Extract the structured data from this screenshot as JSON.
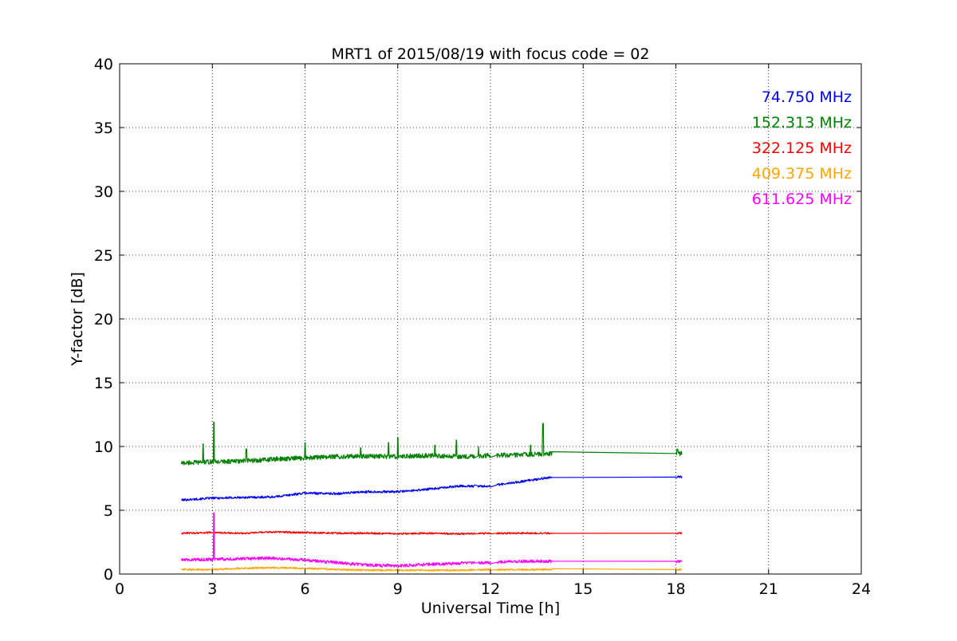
{
  "chart_data": {
    "type": "line",
    "title": "MRT1 of 2015/08/19 with focus code = 02",
    "xlabel": "Universal Time [h]",
    "ylabel": "Y-factor [dB]",
    "xlim": [
      0,
      24
    ],
    "ylim": [
      0,
      40
    ],
    "xticks": [
      0,
      3,
      6,
      9,
      12,
      15,
      18,
      21,
      24
    ],
    "xtick_labels": [
      "0",
      "3",
      "6",
      "9",
      "12",
      "15",
      "18",
      "21",
      "24"
    ],
    "yticks": [
      0,
      5,
      10,
      15,
      20,
      25,
      30,
      35,
      40
    ],
    "ytick_labels": [
      "0",
      "5",
      "10",
      "15",
      "20",
      "25",
      "30",
      "35",
      "40"
    ],
    "grid": true,
    "legend_position": "top-right",
    "series": [
      {
        "name": "74.750 MHz",
        "color": "#0000ff",
        "points": [
          [
            2.0,
            5.8
          ],
          [
            3.0,
            5.95
          ],
          [
            4.0,
            6.0
          ],
          [
            5.0,
            6.05
          ],
          [
            6.0,
            6.35
          ],
          [
            7.0,
            6.3
          ],
          [
            8.0,
            6.45
          ],
          [
            9.0,
            6.45
          ],
          [
            10.0,
            6.65
          ],
          [
            11.0,
            6.9
          ],
          [
            12.0,
            6.9
          ],
          [
            13.0,
            7.25
          ],
          [
            14.0,
            7.6
          ],
          [
            18.0,
            7.6
          ],
          [
            18.2,
            7.6
          ]
        ]
      },
      {
        "name": "152.313 MHz",
        "color": "#008000",
        "points": [
          [
            2.0,
            8.7
          ],
          [
            3.0,
            8.8
          ],
          [
            4.0,
            8.85
          ],
          [
            5.0,
            9.0
          ],
          [
            6.0,
            9.1
          ],
          [
            7.0,
            9.2
          ],
          [
            8.0,
            9.25
          ],
          [
            9.0,
            9.2
          ],
          [
            10.0,
            9.3
          ],
          [
            11.0,
            9.2
          ],
          [
            12.0,
            9.3
          ],
          [
            13.0,
            9.35
          ],
          [
            14.0,
            9.45
          ],
          [
            18.0,
            9.45
          ],
          [
            18.2,
            9.45
          ]
        ],
        "spikes": [
          [
            2.7,
            10.2
          ],
          [
            3.05,
            11.9
          ],
          [
            4.1,
            9.8
          ],
          [
            6.0,
            10.3
          ],
          [
            7.8,
            9.9
          ],
          [
            8.7,
            10.3
          ],
          [
            9.0,
            10.7
          ],
          [
            10.2,
            10.1
          ],
          [
            10.9,
            10.5
          ],
          [
            11.6,
            10.0
          ],
          [
            13.3,
            10.1
          ],
          [
            13.7,
            11.8
          ],
          [
            18.05,
            9.8
          ]
        ]
      },
      {
        "name": "322.125 MHz",
        "color": "#ff0000",
        "points": [
          [
            2.0,
            3.2
          ],
          [
            3.0,
            3.25
          ],
          [
            4.0,
            3.2
          ],
          [
            5.0,
            3.3
          ],
          [
            6.0,
            3.25
          ],
          [
            7.0,
            3.2
          ],
          [
            8.0,
            3.2
          ],
          [
            9.0,
            3.15
          ],
          [
            10.0,
            3.2
          ],
          [
            11.0,
            3.15
          ],
          [
            12.0,
            3.2
          ],
          [
            13.0,
            3.2
          ],
          [
            14.0,
            3.2
          ],
          [
            18.0,
            3.2
          ],
          [
            18.2,
            3.2
          ]
        ]
      },
      {
        "name": "409.375 MHz",
        "color": "#ffa500",
        "points": [
          [
            2.0,
            0.35
          ],
          [
            3.0,
            0.35
          ],
          [
            4.0,
            0.45
          ],
          [
            5.0,
            0.5
          ],
          [
            6.0,
            0.45
          ],
          [
            7.0,
            0.35
          ],
          [
            8.0,
            0.3
          ],
          [
            9.0,
            0.3
          ],
          [
            10.0,
            0.3
          ],
          [
            11.0,
            0.3
          ],
          [
            12.0,
            0.35
          ],
          [
            13.0,
            0.35
          ],
          [
            14.0,
            0.35
          ],
          [
            18.0,
            0.35
          ],
          [
            18.2,
            0.35
          ]
        ]
      },
      {
        "name": "611.625 MHz",
        "color": "#ff00ff",
        "points": [
          [
            2.0,
            1.1
          ],
          [
            3.0,
            1.15
          ],
          [
            4.0,
            1.2
          ],
          [
            5.0,
            1.25
          ],
          [
            6.0,
            1.1
          ],
          [
            7.0,
            0.9
          ],
          [
            8.0,
            0.7
          ],
          [
            9.0,
            0.65
          ],
          [
            10.0,
            0.75
          ],
          [
            11.0,
            0.85
          ],
          [
            12.0,
            0.9
          ],
          [
            13.0,
            1.0
          ],
          [
            14.0,
            1.0
          ],
          [
            18.0,
            1.0
          ],
          [
            18.2,
            1.0
          ]
        ],
        "spikes": [
          [
            3.05,
            4.8
          ]
        ]
      }
    ]
  }
}
